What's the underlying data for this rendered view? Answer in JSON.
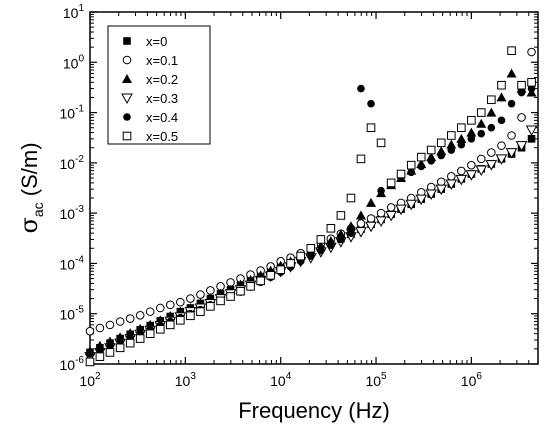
{
  "chart_data": {
    "type": "scatter",
    "title": "",
    "xlabel": "Frequency (Hz)",
    "ylabel_symbol": "σ",
    "ylabel_subscript": "ac",
    "ylabel_unit": " (S/m)",
    "x_scale": "log",
    "y_scale": "log",
    "xlim": [
      100,
      5000000
    ],
    "ylim": [
      1e-06,
      10
    ],
    "x_ticks": [
      {
        "value": 100,
        "base": "10",
        "exp": "2"
      },
      {
        "value": 1000,
        "base": "10",
        "exp": "3"
      },
      {
        "value": 10000,
        "base": "10",
        "exp": "4"
      },
      {
        "value": 100000,
        "base": "10",
        "exp": "5"
      },
      {
        "value": 1000000,
        "base": "10",
        "exp": "6"
      }
    ],
    "y_ticks": [
      {
        "value": 1e-06,
        "base": "10",
        "exp": "-6"
      },
      {
        "value": 1e-05,
        "base": "10",
        "exp": "-5"
      },
      {
        "value": 0.0001,
        "base": "10",
        "exp": "-4"
      },
      {
        "value": 0.001,
        "base": "10",
        "exp": "-3"
      },
      {
        "value": 0.01,
        "base": "10",
        "exp": "-2"
      },
      {
        "value": 0.1,
        "base": "10",
        "exp": "-1"
      },
      {
        "value": 1,
        "base": "10",
        "exp": "0"
      },
      {
        "value": 10,
        "base": "10",
        "exp": "1"
      }
    ],
    "grid": false,
    "legend_position": "top-left",
    "series": [
      {
        "name": "x=0",
        "marker": "square-filled",
        "x": [
          100,
          127,
          162,
          207,
          264,
          336,
          428,
          546,
          695,
          886,
          1130,
          1440,
          1830,
          2340,
          2980,
          3790,
          4830,
          6160,
          7850,
          10000,
          12700,
          16200,
          20700,
          26400,
          33600,
          42800,
          54600,
          69500,
          88600,
          113000,
          144000,
          183000,
          234000,
          298000,
          379000,
          483000,
          616000,
          785000,
          1000000,
          1270000,
          1620000,
          2070000,
          2640000,
          3360000,
          4280000
        ],
        "y": [
          1.7e-06,
          2.1e-06,
          2.6e-06,
          3.2e-06,
          3.9e-06,
          4.8e-06,
          5.8e-06,
          7.2e-06,
          8.8e-06,
          1.1e-05,
          1.3e-05,
          1.6e-05,
          2e-05,
          2.5e-05,
          3e-05,
          3.7e-05,
          4.6e-05,
          5.7e-05,
          7e-05,
          8.7e-05,
          0.00011,
          0.00013,
          0.00016,
          0.0002,
          0.00025,
          0.00031,
          0.00038,
          0.00048,
          0.0006,
          0.00075,
          0.00095,
          0.0012,
          0.0015,
          0.0019,
          0.0024,
          0.003,
          0.0038,
          0.0048,
          0.006,
          0.0076,
          0.0095,
          0.012,
          0.015,
          0.02,
          0.03
        ]
      },
      {
        "name": "x=0.1",
        "marker": "circle-open",
        "x": [
          100,
          127,
          162,
          207,
          264,
          336,
          428,
          546,
          695,
          886,
          1130,
          1440,
          1830,
          2340,
          2980,
          3790,
          4830,
          6160,
          7850,
          10000,
          12700,
          16200,
          20700,
          26400,
          33600,
          42800,
          54600,
          69500,
          88600,
          113000,
          144000,
          183000,
          234000,
          298000,
          379000,
          483000,
          616000,
          785000,
          1000000,
          1270000,
          1620000,
          2070000,
          2640000,
          3360000,
          4280000
        ],
        "y": [
          4.5e-06,
          5.2e-06,
          6e-06,
          7e-06,
          8e-06,
          9.3e-06,
          1.1e-05,
          1.3e-05,
          1.5e-05,
          1.7e-05,
          2e-05,
          2.4e-05,
          2.9e-05,
          3.5e-05,
          4.2e-05,
          5e-05,
          6e-05,
          7.2e-05,
          8.7e-05,
          0.00011,
          0.00013,
          0.00016,
          0.0002,
          0.00025,
          0.00031,
          0.00039,
          0.00049,
          0.00062,
          0.00078,
          0.001,
          0.0013,
          0.0016,
          0.002,
          0.0026,
          0.0033,
          0.0042,
          0.0054,
          0.0069,
          0.009,
          0.012,
          0.016,
          0.022,
          0.035,
          0.08,
          1.6
        ]
      },
      {
        "name": "x=0.2",
        "marker": "triangle-up-filled",
        "x": [
          100,
          127,
          162,
          207,
          264,
          336,
          428,
          546,
          695,
          886,
          1130,
          1440,
          1830,
          2340,
          2980,
          3790,
          4830,
          6160,
          7850,
          10000,
          12700,
          16200,
          20700,
          26400,
          33600,
          42800,
          54600,
          69500,
          88600,
          113000,
          144000,
          183000,
          234000,
          298000,
          379000,
          483000,
          616000,
          785000,
          1000000,
          1270000,
          1620000,
          2070000,
          2640000,
          3360000,
          4280000
        ],
        "y": [
          1.8e-06,
          2.3e-06,
          2.8e-06,
          3.4e-06,
          4.1e-06,
          5e-06,
          6e-06,
          7.4e-06,
          9e-06,
          1.1e-05,
          1.3e-05,
          1.6e-05,
          2e-05,
          2.5e-05,
          3e-05,
          3.8e-05,
          4.7e-05,
          5.8e-05,
          7.2e-05,
          9e-05,
          0.00011,
          0.00014,
          0.00017,
          0.00022,
          0.00028,
          0.00038,
          0.00055,
          0.0009,
          0.0016,
          0.0025,
          0.0036,
          0.005,
          0.007,
          0.0095,
          0.013,
          0.017,
          0.023,
          0.03,
          0.04,
          0.06,
          0.1,
          0.2,
          0.6,
          0.3,
          0.25
        ]
      },
      {
        "name": "x=0.3",
        "marker": "triangle-down-open",
        "x": [
          100,
          127,
          162,
          207,
          264,
          336,
          428,
          546,
          695,
          886,
          1130,
          1440,
          1830,
          2340,
          2980,
          3790,
          4830,
          6160,
          7850,
          10000,
          12700,
          16200,
          20700,
          26400,
          33600,
          42800,
          54600,
          69500,
          88600,
          113000,
          144000,
          183000,
          234000,
          298000,
          379000,
          483000,
          616000,
          785000,
          1000000,
          1270000,
          1620000,
          2070000,
          2640000,
          3360000,
          4280000
        ],
        "y": [
          1.4e-06,
          1.7e-06,
          2.1e-06,
          2.6e-06,
          3.2e-06,
          3.9e-06,
          4.7e-06,
          5.8e-06,
          7.1e-06,
          8.7e-06,
          1.1e-05,
          1.3e-05,
          1.6e-05,
          2e-05,
          2.5e-05,
          3e-05,
          3.7e-05,
          4.6e-05,
          5.6e-05,
          6.9e-05,
          8.6e-05,
          0.00011,
          0.00013,
          0.00017,
          0.00021,
          0.00027,
          0.00034,
          0.00043,
          0.00055,
          0.0007,
          0.0009,
          0.0012,
          0.0015,
          0.0019,
          0.0024,
          0.003,
          0.0038,
          0.0047,
          0.0058,
          0.0072,
          0.0092,
          0.012,
          0.016,
          0.022,
          0.045
        ]
      },
      {
        "name": "x=0.4",
        "marker": "circle-filled",
        "x": [
          100,
          127,
          162,
          207,
          264,
          336,
          428,
          546,
          695,
          886,
          1130,
          1440,
          1830,
          2340,
          2980,
          3790,
          4830,
          6160,
          7850,
          10000,
          12700,
          16200,
          20700,
          26400,
          33600,
          42800,
          54600,
          69500,
          88600,
          113000,
          144000,
          183000,
          234000,
          298000,
          379000,
          483000,
          616000,
          785000,
          1000000,
          1270000,
          1620000,
          2070000,
          2640000,
          3360000,
          4280000
        ],
        "y": [
          1.6e-06,
          1.9e-06,
          2.3e-06,
          2.8e-06,
          3.4e-06,
          4.1e-06,
          4.9e-06,
          5.8e-06,
          7e-06,
          8.4e-06,
          1e-05,
          1.2e-05,
          1.5e-05,
          1.8e-05,
          2.2e-05,
          2.7e-05,
          3.4e-05,
          4.2e-05,
          5.3e-05,
          6.7e-05,
          8.5e-05,
          0.00011,
          0.00014,
          0.00018,
          0.00023,
          0.0003,
          0.0004,
          0.3,
          0.15,
          0.0028,
          0.0038,
          0.005,
          0.0065,
          0.0085,
          0.011,
          0.014,
          0.018,
          0.023,
          0.03,
          0.038,
          0.05,
          0.07,
          0.15,
          0.25,
          0.3
        ]
      },
      {
        "name": "x=0.5",
        "marker": "square-open",
        "x": [
          100,
          127,
          162,
          207,
          264,
          336,
          428,
          546,
          695,
          886,
          1130,
          1440,
          1830,
          2340,
          2980,
          3790,
          4830,
          6160,
          7850,
          10000,
          12700,
          16200,
          20700,
          26400,
          33600,
          42800,
          54600,
          69500,
          88600,
          113000,
          144000,
          183000,
          234000,
          298000,
          379000,
          483000,
          616000,
          785000,
          1000000,
          1270000,
          1620000,
          2070000,
          2640000,
          3360000,
          4280000
        ],
        "y": [
          1.1e-06,
          1.4e-06,
          1.7e-06,
          2.1e-06,
          2.6e-06,
          3.2e-06,
          4e-06,
          4.9e-06,
          6e-06,
          7.4e-06,
          9.1e-06,
          1.1e-05,
          1.4e-05,
          1.8e-05,
          2.2e-05,
          2.8e-05,
          3.5e-05,
          4.5e-05,
          5.8e-05,
          7.5e-05,
          0.0001,
          0.00014,
          0.0002,
          0.0003,
          0.0005,
          0.0009,
          0.002,
          0.012,
          0.05,
          0.025,
          0.004,
          0.006,
          0.009,
          0.013,
          0.018,
          0.025,
          0.035,
          0.05,
          0.07,
          0.1,
          0.18,
          0.35,
          1.7,
          0.35,
          0.4
        ]
      }
    ]
  }
}
